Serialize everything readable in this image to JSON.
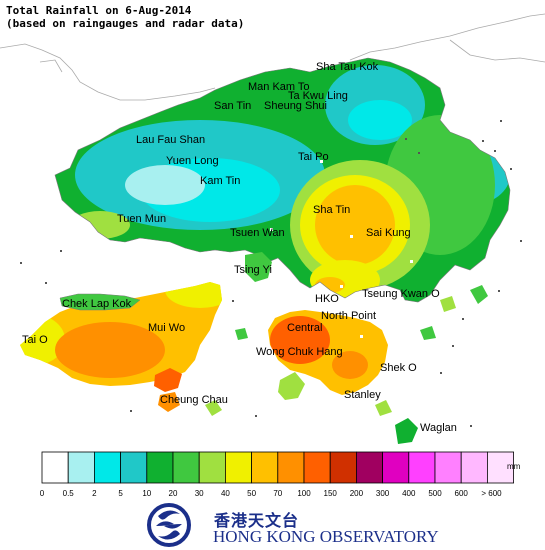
{
  "title_line1": "Total Rainfall on 6-Aug-2014",
  "title_line2": "(based on raingauges and radar data)",
  "places": [
    {
      "id": "sha-tau-kok",
      "label": "Sha Tau Kok"
    },
    {
      "id": "man-kam-to",
      "label": "Man Kam To"
    },
    {
      "id": "ta-kwu-ling",
      "label": "Ta Kwu Ling"
    },
    {
      "id": "san-tin",
      "label": "San Tin"
    },
    {
      "id": "sheung-shui",
      "label": "Sheung Shui"
    },
    {
      "id": "lau-fau-shan",
      "label": "Lau Fau Shan"
    },
    {
      "id": "yuen-long",
      "label": "Yuen Long"
    },
    {
      "id": "tai-po",
      "label": "Tai Po"
    },
    {
      "id": "kam-tin",
      "label": "Kam Tin"
    },
    {
      "id": "tuen-mun",
      "label": "Tuen Mun"
    },
    {
      "id": "sha-tin",
      "label": "Sha Tin"
    },
    {
      "id": "tsuen-wan",
      "label": "Tsuen Wan"
    },
    {
      "id": "sai-kung",
      "label": "Sai Kung"
    },
    {
      "id": "tsing-yi",
      "label": "Tsing Yi"
    },
    {
      "id": "hko",
      "label": "HKO"
    },
    {
      "id": "tseung-kwan-o",
      "label": "Tseung Kwan O"
    },
    {
      "id": "chek-lap-kok",
      "label": "Chek Lap Kok"
    },
    {
      "id": "north-point",
      "label": "North Point"
    },
    {
      "id": "mui-wo",
      "label": "Mui Wo"
    },
    {
      "id": "central",
      "label": "Central"
    },
    {
      "id": "tai-o",
      "label": "Tai O"
    },
    {
      "id": "wong-chuk-hang",
      "label": "Wong Chuk Hang"
    },
    {
      "id": "shek-o",
      "label": "Shek O"
    },
    {
      "id": "stanley",
      "label": "Stanley"
    },
    {
      "id": "cheung-chau",
      "label": "Cheung Chau"
    },
    {
      "id": "waglan",
      "label": "Waglan"
    }
  ],
  "legend": {
    "unit": "mm",
    "colors": [
      "#ffffff",
      "#a8f0f0",
      "#00e8e8",
      "#20c8c8",
      "#10b030",
      "#40c840",
      "#a0e040",
      "#f0f000",
      "#ffc000",
      "#ff9000",
      "#ff6000",
      "#d03000",
      "#a00060",
      "#e000c0",
      "#ff40ff",
      "#ff80ff",
      "#ffb8ff",
      "#ffe0ff"
    ],
    "ticks": [
      "0",
      "0.5",
      "2",
      "5",
      "10",
      "20",
      "30",
      "40",
      "50",
      "70",
      "100",
      "150",
      "200",
      "300",
      "400",
      "500",
      "600",
      "> 600"
    ]
  },
  "logo": {
    "name_cn": "香港天文台",
    "name_en": "HONG KONG OBSERVATORY"
  }
}
